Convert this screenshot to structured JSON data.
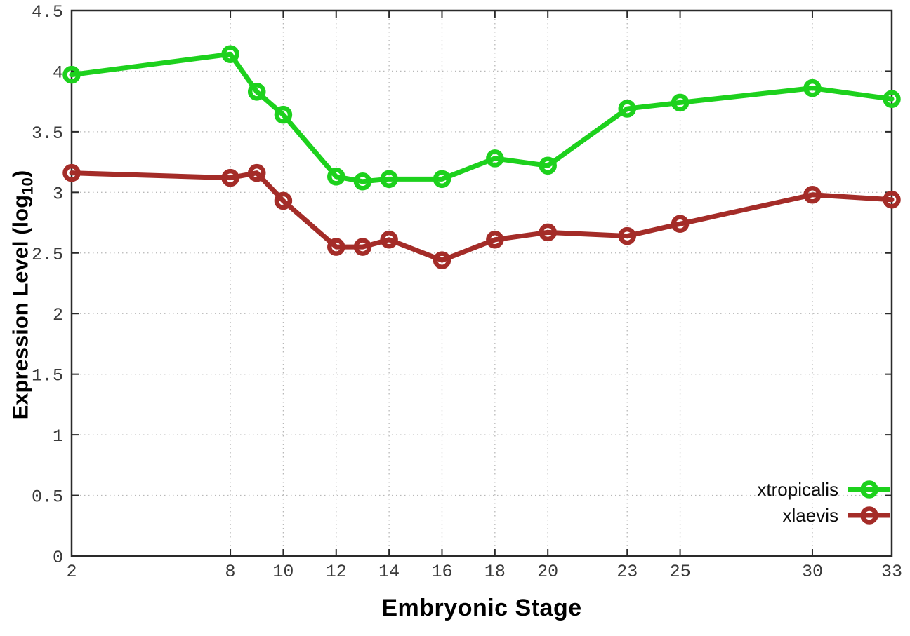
{
  "chart_data": {
    "type": "line",
    "title": "",
    "xlabel": "Embryonic Stage",
    "ylabel": "Expression Level (log10)",
    "ylabel_parts": {
      "pre": "Expression Level (log",
      "sub": "10",
      "post": ")"
    },
    "x": [
      2,
      8,
      9,
      10,
      12,
      13,
      14,
      16,
      18,
      20,
      23,
      25,
      30,
      33
    ],
    "series": [
      {
        "name": "xtropicalis",
        "color": "#1dd11d",
        "values": [
          3.97,
          4.14,
          3.83,
          3.64,
          3.13,
          3.09,
          3.11,
          3.11,
          3.28,
          3.22,
          3.69,
          3.74,
          3.86,
          3.77
        ]
      },
      {
        "name": "xlaevis",
        "color": "#a42c28",
        "values": [
          3.16,
          3.12,
          3.16,
          2.93,
          2.55,
          2.55,
          2.61,
          2.44,
          2.61,
          2.67,
          2.64,
          2.74,
          2.98,
          2.94
        ]
      }
    ],
    "xticks": [
      2,
      8,
      10,
      12,
      14,
      16,
      18,
      20,
      23,
      25,
      30,
      33
    ],
    "ytick_labels": [
      "0",
      "0.5",
      "1",
      "1.5",
      "2",
      "2.5",
      "3",
      "3.5",
      "4",
      "4.5"
    ],
    "ytick_values": [
      0,
      0.5,
      1,
      1.5,
      2,
      2.5,
      3,
      3.5,
      4,
      4.5
    ],
    "xlim": [
      2,
      33
    ],
    "ylim": [
      0,
      4.5
    ],
    "grid": true,
    "grid_style": "dotted",
    "legend_position": "inside-bottom-right",
    "colors": {
      "background": "#ffffff",
      "axis": "#2a2a2a",
      "grid": "#b8b8b8",
      "tick_text": "#3a3a3a"
    }
  }
}
